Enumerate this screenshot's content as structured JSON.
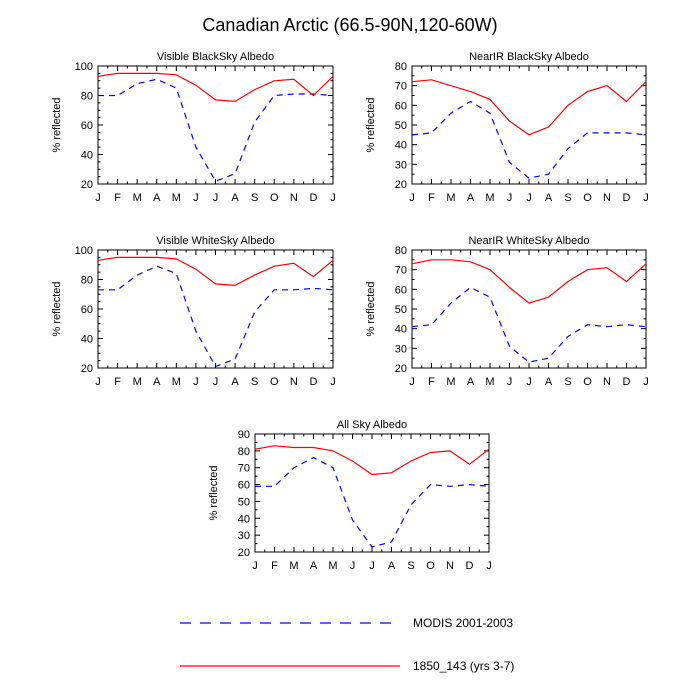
{
  "figure": {
    "title": "Canadian Arctic (66.5-90N,120-60W)"
  },
  "colors": {
    "modis": "#0000ff",
    "model": "#ff0000"
  },
  "legend": [
    {
      "label": "MODIS 2001-2003",
      "style": "dashed",
      "color": "#0000ff"
    },
    {
      "label": "1850_143 (yrs 3-7)",
      "style": "solid",
      "color": "#ff0000"
    }
  ],
  "chart_data": [
    {
      "type": "line",
      "title": "Visible BlackSky Albedo",
      "xlabel": "",
      "ylabel": "% reflected",
      "categories": [
        "J",
        "F",
        "M",
        "A",
        "M",
        "J",
        "J",
        "A",
        "S",
        "O",
        "N",
        "D",
        "J"
      ],
      "ylim": [
        20,
        100
      ],
      "yticks": [
        20,
        40,
        60,
        80,
        100
      ],
      "series": [
        {
          "name": "MODIS 2001-2003",
          "values": [
            80,
            80,
            88,
            91,
            85,
            45,
            22,
            27,
            62,
            80,
            81,
            81,
            80
          ]
        },
        {
          "name": "1850_143 (yrs 3-7)",
          "values": [
            93,
            95,
            95,
            95,
            94,
            87,
            77,
            76,
            84,
            90,
            91,
            80,
            93
          ]
        }
      ]
    },
    {
      "type": "line",
      "title": "NearIR BlackSky Albedo",
      "xlabel": "",
      "ylabel": "% reflected",
      "categories": [
        "J",
        "F",
        "M",
        "A",
        "M",
        "J",
        "J",
        "A",
        "S",
        "O",
        "N",
        "D",
        "J"
      ],
      "ylim": [
        20,
        80
      ],
      "yticks": [
        20,
        30,
        40,
        50,
        60,
        70,
        80
      ],
      "series": [
        {
          "name": "MODIS 2001-2003",
          "values": [
            45,
            46,
            56,
            62,
            56,
            31,
            23,
            25,
            38,
            46,
            46,
            46,
            45
          ]
        },
        {
          "name": "1850_143 (yrs 3-7)",
          "values": [
            72,
            73,
            70,
            67,
            63,
            52,
            45,
            49,
            60,
            67,
            70,
            62,
            72
          ]
        }
      ]
    },
    {
      "type": "line",
      "title": "Visible WhiteSky Albedo",
      "xlabel": "",
      "ylabel": "% reflected",
      "categories": [
        "J",
        "F",
        "M",
        "A",
        "M",
        "J",
        "J",
        "A",
        "S",
        "O",
        "N",
        "D",
        "J"
      ],
      "ylim": [
        20,
        100
      ],
      "yticks": [
        20,
        40,
        60,
        80,
        100
      ],
      "series": [
        {
          "name": "MODIS 2001-2003",
          "values": [
            73,
            73,
            83,
            89,
            84,
            45,
            21,
            26,
            58,
            73,
            73,
            74,
            73
          ]
        },
        {
          "name": "1850_143 (yrs 3-7)",
          "values": [
            93,
            95,
            95,
            95,
            94,
            87,
            77,
            76,
            83,
            89,
            91,
            82,
            93
          ]
        }
      ]
    },
    {
      "type": "line",
      "title": "NearIR WhiteSky Albedo",
      "xlabel": "",
      "ylabel": "% reflected",
      "categories": [
        "J",
        "F",
        "M",
        "A",
        "M",
        "J",
        "J",
        "A",
        "S",
        "O",
        "N",
        "D",
        "J"
      ],
      "ylim": [
        20,
        80
      ],
      "yticks": [
        20,
        30,
        40,
        50,
        60,
        70,
        80
      ],
      "series": [
        {
          "name": "MODIS 2001-2003",
          "values": [
            41,
            42,
            53,
            61,
            56,
            31,
            23,
            25,
            36,
            42,
            41,
            42,
            41
          ]
        },
        {
          "name": "1850_143 (yrs 3-7)",
          "values": [
            73,
            75,
            75,
            74,
            70,
            61,
            53,
            56,
            64,
            70,
            71,
            64,
            73
          ]
        }
      ]
    },
    {
      "type": "line",
      "title": "All Sky Albedo",
      "xlabel": "",
      "ylabel": "% reflected",
      "categories": [
        "J",
        "F",
        "M",
        "A",
        "M",
        "J",
        "J",
        "A",
        "S",
        "O",
        "N",
        "D",
        "J"
      ],
      "ylim": [
        20,
        90
      ],
      "yticks": [
        20,
        30,
        40,
        50,
        60,
        70,
        80,
        90
      ],
      "series": [
        {
          "name": "MODIS 2001-2003",
          "values": [
            59,
            59,
            70,
            76,
            70,
            39,
            23,
            26,
            48,
            60,
            59,
            60,
            59
          ]
        },
        {
          "name": "1850_143 (yrs 3-7)",
          "values": [
            81,
            83,
            82,
            82,
            80,
            74,
            66,
            67,
            74,
            79,
            80,
            72,
            81
          ]
        }
      ]
    }
  ]
}
